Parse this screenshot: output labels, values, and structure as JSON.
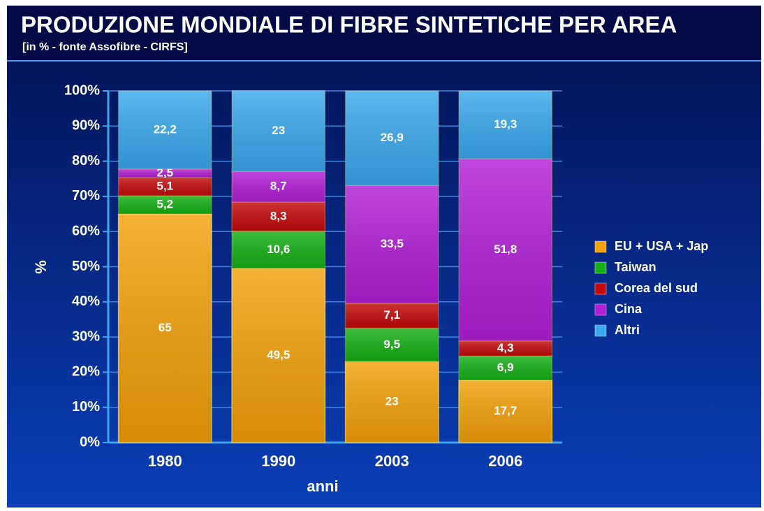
{
  "chart_data": {
    "type": "stacked_bar",
    "title": "PRODUZIONE MONDIALE DI FIBRE SINTETICHE PER AREA",
    "subtitle": "[in % - fonte Assofibre - CIRFS]",
    "x_label": "anni",
    "y_label": "%",
    "categories": [
      "1980",
      "1990",
      "2003",
      "2006"
    ],
    "series": [
      {
        "name": "EU + USA + Jap",
        "color": "#f3a10a",
        "values": [
          65,
          49.5,
          23,
          17.7
        ],
        "value_labels": [
          "65",
          "49,5",
          "23",
          "17,7"
        ]
      },
      {
        "name": "Taiwan",
        "color": "#16b016",
        "values": [
          5.2,
          10.6,
          9.5,
          6.9
        ],
        "value_labels": [
          "5,2",
          "10,6",
          "9,5",
          "6,9"
        ]
      },
      {
        "name": "Corea del sud",
        "color": "#c40a0a",
        "values": [
          5.1,
          8.3,
          7.1,
          4.3
        ],
        "value_labels": [
          "5,1",
          "8,3",
          "7,1",
          "4,3"
        ]
      },
      {
        "name": "Cina",
        "color": "#b21fd6",
        "values": [
          2.5,
          8.7,
          33.5,
          51.8
        ],
        "value_labels": [
          "2,5",
          "8,7",
          "33,5",
          "51,8"
        ]
      },
      {
        "name": "Altri",
        "color": "#3aa8ee",
        "values": [
          22.2,
          23,
          26.9,
          19.3
        ],
        "value_labels": [
          "22,2",
          "23",
          "26,9",
          "19,3"
        ]
      }
    ],
    "ylim": [
      0,
      100
    ],
    "yticks": [
      {
        "value": 0,
        "label": "0%"
      },
      {
        "value": 10,
        "label": "10%"
      },
      {
        "value": 20,
        "label": "20%"
      },
      {
        "value": 30,
        "label": "30%"
      },
      {
        "value": 40,
        "label": "40%"
      },
      {
        "value": 50,
        "label": "50%"
      },
      {
        "value": 60,
        "label": "60%"
      },
      {
        "value": 70,
        "label": "70%"
      },
      {
        "value": 80,
        "label": "80%"
      },
      {
        "value": 90,
        "label": "90%"
      },
      {
        "value": 100,
        "label": "100%"
      }
    ],
    "grid": true,
    "legend": "right"
  }
}
